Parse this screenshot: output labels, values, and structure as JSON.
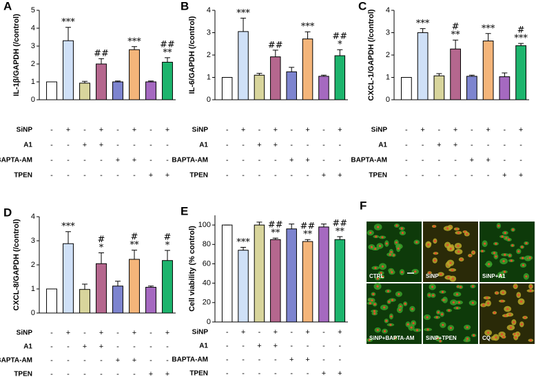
{
  "chart_data": [
    {
      "type": "bar",
      "panel_label": "A",
      "y_label": "IL-1β/GAPDH (/control)",
      "ylim": [
        0,
        5
      ],
      "yticks": [
        0,
        1,
        2,
        3,
        4,
        5
      ],
      "colors": [
        "#ffffff",
        "#cfe0f7",
        "#d8d59c",
        "#b5678e",
        "#7d84cf",
        "#f4b57a",
        "#a569c0",
        "#1db46d"
      ],
      "values": [
        1,
        3.3,
        0.93,
        2.0,
        1.0,
        2.8,
        1.0,
        2.1
      ],
      "errors": [
        0,
        0.75,
        0.1,
        0.3,
        0.05,
        0.17,
        0.05,
        0.25
      ],
      "annotations": [
        [],
        [
          "***"
        ],
        [],
        [
          "##"
        ],
        [],
        [
          "***"
        ],
        [],
        [
          "##",
          "**"
        ]
      ],
      "treatments": [
        {
          "name": "SiNP",
          "signs": [
            "-",
            "+",
            "-",
            "+",
            "-",
            "+",
            "-",
            "+"
          ]
        },
        {
          "name": "A1",
          "signs": [
            "-",
            "-",
            "+",
            "+",
            "-",
            "-",
            "-",
            "-"
          ]
        },
        {
          "name": "BAPTA-AM",
          "signs": [
            "-",
            "-",
            "-",
            "-",
            "+",
            "+",
            "-",
            "-"
          ]
        },
        {
          "name": "TPEN",
          "signs": [
            "-",
            "-",
            "-",
            "-",
            "-",
            "-",
            "+",
            "+"
          ]
        }
      ]
    },
    {
      "type": "bar",
      "panel_label": "B",
      "y_label": "IL-6/GAPDH (/control)",
      "ylim": [
        0,
        4
      ],
      "yticks": [
        0,
        1,
        2,
        3,
        4
      ],
      "colors": [
        "#ffffff",
        "#cfe0f7",
        "#d8d59c",
        "#b5678e",
        "#7d84cf",
        "#f4b57a",
        "#a569c0",
        "#1db46d"
      ],
      "values": [
        1,
        3.05,
        1.1,
        1.92,
        1.25,
        2.72,
        1.05,
        1.97
      ],
      "errors": [
        0,
        0.6,
        0.08,
        0.3,
        0.2,
        0.32,
        0.05,
        0.27
      ],
      "annotations": [
        [],
        [
          "***"
        ],
        [],
        [
          "##"
        ],
        [],
        [
          "***"
        ],
        [],
        [
          "##",
          "*"
        ]
      ],
      "treatments": [
        {
          "name": "SiNP",
          "signs": [
            "-",
            "+",
            "-",
            "+",
            "-",
            "+",
            "-",
            "+"
          ]
        },
        {
          "name": "A1",
          "signs": [
            "-",
            "-",
            "+",
            "+",
            "-",
            "-",
            "-",
            "-"
          ]
        },
        {
          "name": "BAPTA-AM",
          "signs": [
            "-",
            "-",
            "-",
            "-",
            "+",
            "+",
            "-",
            "-"
          ]
        },
        {
          "name": "TPEN",
          "signs": [
            "-",
            "-",
            "-",
            "-",
            "-",
            "-",
            "+",
            "+"
          ]
        }
      ]
    },
    {
      "type": "bar",
      "panel_label": "C",
      "y_label": "CXCL-1/GAPDH (/control)",
      "ylim": [
        0,
        4
      ],
      "yticks": [
        0,
        1,
        2,
        3,
        4
      ],
      "colors": [
        "#ffffff",
        "#cfe0f7",
        "#d8d59c",
        "#b5678e",
        "#7d84cf",
        "#f4b57a",
        "#a569c0",
        "#1db46d"
      ],
      "values": [
        1,
        3.0,
        1.07,
        2.27,
        1.05,
        2.63,
        1.03,
        2.42
      ],
      "errors": [
        0,
        0.18,
        0.1,
        0.4,
        0.05,
        0.33,
        0.17,
        0.1
      ],
      "annotations": [
        [],
        [
          "***"
        ],
        [],
        [
          "#",
          "**"
        ],
        [],
        [
          "***"
        ],
        [],
        [
          "#",
          "***"
        ]
      ],
      "treatments": [
        {
          "name": "SiNP",
          "signs": [
            "-",
            "+",
            "-",
            "+",
            "-",
            "+",
            "-",
            "+"
          ]
        },
        {
          "name": "A1",
          "signs": [
            "-",
            "-",
            "+",
            "+",
            "-",
            "-",
            "-",
            "-"
          ]
        },
        {
          "name": "BAPTA-AM",
          "signs": [
            "-",
            "-",
            "-",
            "-",
            "+",
            "+",
            "-",
            "-"
          ]
        },
        {
          "name": "TPEN",
          "signs": [
            "-",
            "-",
            "-",
            "-",
            "-",
            "-",
            "+",
            "+"
          ]
        }
      ]
    },
    {
      "type": "bar",
      "panel_label": "D",
      "y_label": "CXCL-8/GAPDH (/control)",
      "ylim": [
        0,
        4
      ],
      "yticks": [
        0,
        1,
        2,
        3,
        4
      ],
      "colors": [
        "#ffffff",
        "#cfe0f7",
        "#d8d59c",
        "#b5678e",
        "#7d84cf",
        "#f4b57a",
        "#a569c0",
        "#1db46d"
      ],
      "values": [
        1,
        2.88,
        0.98,
        2.05,
        1.12,
        2.23,
        1.07,
        2.18
      ],
      "errors": [
        0,
        0.5,
        0.22,
        0.45,
        0.2,
        0.38,
        0.05,
        0.42
      ],
      "annotations": [
        [],
        [
          "***"
        ],
        [],
        [
          "#",
          "*"
        ],
        [],
        [
          "#",
          "**"
        ],
        [],
        [
          "#",
          "*"
        ]
      ],
      "treatments": [
        {
          "name": "SiNP",
          "signs": [
            "-",
            "+",
            "-",
            "+",
            "-",
            "+",
            "-",
            "+"
          ]
        },
        {
          "name": "A1",
          "signs": [
            "-",
            "-",
            "+",
            "+",
            "-",
            "-",
            "-",
            "-"
          ]
        },
        {
          "name": "BAPTA-AM",
          "signs": [
            "-",
            "-",
            "-",
            "-",
            "+",
            "+",
            "-",
            "-"
          ]
        },
        {
          "name": "TPEN",
          "signs": [
            "-",
            "-",
            "-",
            "-",
            "-",
            "-",
            "+",
            "+"
          ]
        }
      ]
    },
    {
      "type": "bar",
      "panel_label": "E",
      "y_label": "Cell viability (% control)",
      "ylim": [
        0,
        110
      ],
      "yticks": [
        0,
        20,
        40,
        60,
        80,
        100
      ],
      "colors": [
        "#ffffff",
        "#cfe0f7",
        "#d8d59c",
        "#b5678e",
        "#7d84cf",
        "#f4b57a",
        "#a569c0",
        "#1db46d"
      ],
      "values": [
        100,
        74,
        100,
        85,
        96,
        83,
        98,
        85
      ],
      "errors": [
        0,
        3,
        3,
        1.5,
        5,
        2,
        3,
        3
      ],
      "annotations": [
        [],
        [
          "***"
        ],
        [],
        [
          "##",
          "**"
        ],
        [],
        [
          "##",
          "**"
        ],
        [],
        [
          "##",
          "**"
        ]
      ],
      "treatments": [
        {
          "name": "SiNP",
          "signs": [
            "-",
            "+",
            "-",
            "+",
            "-",
            "+",
            "-",
            "+"
          ]
        },
        {
          "name": "A1",
          "signs": [
            "-",
            "-",
            "+",
            "+",
            "-",
            "-",
            "-",
            "-"
          ]
        },
        {
          "name": "BAPTA-AM",
          "signs": [
            "-",
            "-",
            "-",
            "-",
            "+",
            "+",
            "-",
            "-"
          ]
        },
        {
          "name": "TPEN",
          "signs": [
            "-",
            "-",
            "-",
            "-",
            "-",
            "-",
            "+",
            "+"
          ]
        }
      ]
    }
  ],
  "image_panel": {
    "panel_label": "F",
    "tiles": [
      "CTRL",
      "SiNP",
      "SiNP+A1",
      "SiNP+BAPTA-AM",
      "SiNP+TPEN",
      "CQ"
    ]
  }
}
